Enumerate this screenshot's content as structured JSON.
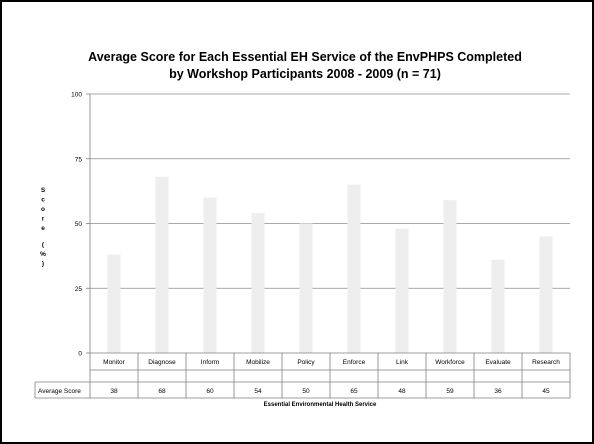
{
  "chart_data": {
    "type": "bar",
    "title_lines": [
      "Average Score for Each Essential EH Service of the EnvPHPS Completed",
      "by Workshop Participants 2008 - 2009 (n = 71)"
    ],
    "ylabel_chars": [
      "S",
      "c",
      "o",
      "r",
      "e",
      "",
      "(",
      "%",
      ")"
    ],
    "xlabel": "Essential Environmental Health Service",
    "ylim": [
      0,
      100
    ],
    "yticks": [
      "0",
      "25",
      "50",
      "75",
      "100"
    ],
    "grid": true,
    "categories": [
      "Monitor",
      "Diagnose",
      "Inform",
      "Mobilize",
      "Policy",
      "Enforce",
      "Link",
      "Workforce",
      "Evaluate",
      "Research"
    ],
    "series": [
      {
        "name": "Average Score",
        "values": [
          38,
          68,
          60,
          54,
          50,
          65,
          48,
          59,
          36,
          45
        ],
        "labels": [
          "38",
          "68",
          "60",
          "54",
          "50",
          "65",
          "48",
          "59",
          "36",
          "45"
        ]
      }
    ],
    "colors": {
      "bar": "#eeeeee",
      "grid": "#8c8c8c",
      "axis": "#7f7f7f"
    }
  }
}
